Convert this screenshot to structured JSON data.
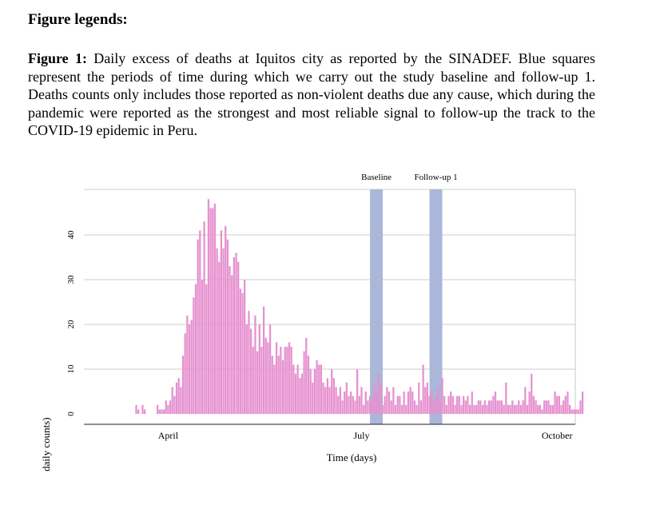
{
  "document": {
    "heading": "Figure legends:",
    "figure_label": "Figure 1:",
    "caption": "Daily excess of deaths at Iquitos city as reported by the SINADEF. Blue squares represent the periods of time during which we carry out the study baseline and follow-up 1. Deaths counts only includes those reported as non-violent deaths due any cause, which during the pandemic were reported as the strongest and most reliable signal to follow-up the track to the COVID-19 epidemic in Peru."
  },
  "colors": {
    "bar": "#e691cf",
    "shade": "#aab6da",
    "grid": "#bbbbbb"
  },
  "chart_data": {
    "type": "bar",
    "xlabel": "Time (days)",
    "ylabel": "Deaths (daily counts)",
    "ylim": [
      -2,
      50
    ],
    "yticks": [
      0,
      10,
      20,
      30,
      40
    ],
    "grid": true,
    "x_start_day": 76,
    "x_ticks": [
      {
        "label": "April",
        "day": 91
      },
      {
        "label": "July",
        "day": 182
      },
      {
        "label": "October",
        "day": 274
      }
    ],
    "shaded_periods": [
      {
        "label": "Baseline",
        "start_day": 186,
        "end_day": 192
      },
      {
        "label": "Follow-up 1",
        "start_day": 214,
        "end_day": 220
      }
    ],
    "values": [
      2,
      1,
      0,
      2,
      1,
      0,
      0,
      0,
      0,
      0,
      2,
      1,
      1,
      1,
      3,
      2,
      3,
      6,
      4,
      7,
      8,
      6,
      13,
      18,
      22,
      20,
      21,
      26,
      29,
      39,
      41,
      30,
      43,
      29,
      48,
      46,
      46,
      47,
      37,
      34,
      41,
      37,
      42,
      39,
      33,
      31,
      35,
      36,
      34,
      28,
      27,
      30,
      20,
      23,
      19,
      15,
      22,
      14,
      20,
      15,
      24,
      17,
      16,
      20,
      13,
      11,
      16,
      13,
      15,
      12,
      15,
      15,
      16,
      15,
      11,
      9,
      11,
      8,
      9,
      14,
      17,
      13,
      10,
      7,
      10,
      12,
      11,
      11,
      7,
      6,
      8,
      6,
      10,
      8,
      6,
      4,
      6,
      3,
      5,
      7,
      4,
      5,
      4,
      3,
      10,
      4,
      6,
      2,
      5,
      3,
      4,
      3,
      7,
      5,
      9,
      7,
      2,
      4,
      6,
      5,
      3,
      6,
      2,
      4,
      4,
      2,
      5,
      2,
      5,
      6,
      5,
      3,
      2,
      7,
      3,
      11,
      6,
      7,
      4,
      5,
      3,
      4,
      6,
      3,
      8,
      4,
      2,
      4,
      5,
      4,
      2,
      4,
      4,
      2,
      4,
      3,
      4,
      2,
      5,
      2,
      2,
      3,
      3,
      2,
      3,
      2,
      3,
      3,
      4,
      5,
      3,
      3,
      3,
      2,
      7,
      2,
      2,
      3,
      2,
      2,
      3,
      2,
      3,
      6,
      2,
      5,
      9,
      4,
      3,
      2,
      2,
      1,
      3,
      3,
      3,
      2,
      2,
      5,
      4,
      4,
      2,
      3,
      4,
      5,
      2,
      1,
      1,
      1,
      1,
      3,
      5
    ]
  }
}
